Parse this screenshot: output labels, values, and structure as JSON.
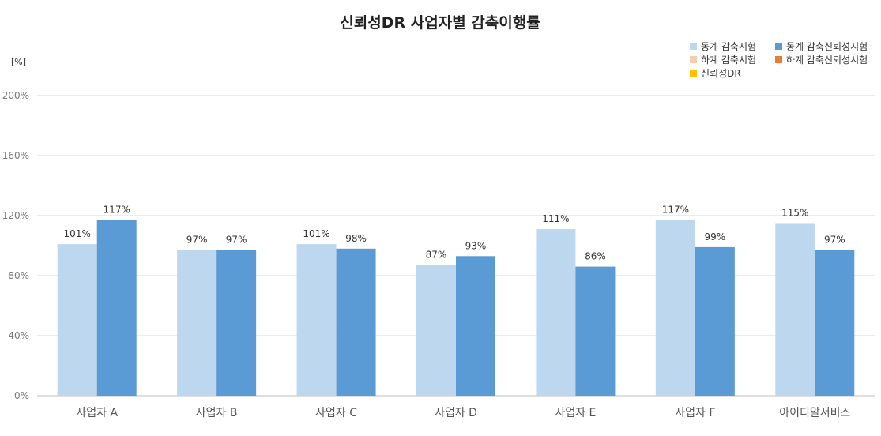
{
  "chart_data": {
    "type": "bar",
    "title": "신뢰성DR 사업자별 감축이행률",
    "unit_label": "[%]",
    "categories": [
      "사업자 A",
      "사업자 B",
      "사업자 C",
      "사업자 D",
      "사업자 E",
      "사업자 F",
      "아이디알서비스"
    ],
    "ylim": [
      0,
      200
    ],
    "yticks": [
      0,
      40,
      80,
      120,
      160,
      200
    ],
    "ytick_labels": [
      "0%",
      "40%",
      "80%",
      "120%",
      "160%",
      "200%"
    ],
    "grid": true,
    "legend_position": "top-right",
    "legend": [
      {
        "name": "동계 감축시험",
        "color": "#bdd7ee"
      },
      {
        "name": "동계 감축신뢰성시험",
        "color": "#5b9bd5"
      },
      {
        "name": "하계 감축시험",
        "color": "#f8cbad"
      },
      {
        "name": "하계 감축신뢰성시험",
        "color": "#ed7d31"
      },
      {
        "name": "신뢰성DR",
        "color": "#ffc000"
      }
    ],
    "series": [
      {
        "name": "동계 감축시험",
        "color": "#bdd7ee",
        "values": [
          101,
          97,
          101,
          87,
          111,
          117,
          115
        ],
        "labels": [
          "101%",
          "97%",
          "101%",
          "87%",
          "111%",
          "117%",
          "115%"
        ]
      },
      {
        "name": "동계 감축신뢰성시험",
        "color": "#5b9bd5",
        "values": [
          117,
          97,
          98,
          93,
          86,
          99,
          97
        ],
        "labels": [
          "117%",
          "97%",
          "98%",
          "93%",
          "86%",
          "99%",
          "97%"
        ]
      }
    ]
  }
}
